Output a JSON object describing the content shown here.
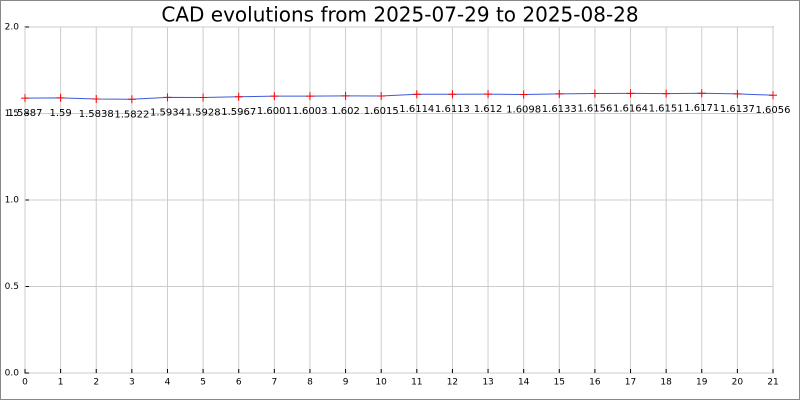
{
  "chart_data": {
    "type": "line",
    "title": "CAD evolutions from 2025-07-29 to 2025-08-28",
    "x": [
      0,
      1,
      2,
      3,
      4,
      5,
      6,
      7,
      8,
      9,
      10,
      11,
      12,
      13,
      14,
      15,
      16,
      17,
      18,
      19,
      20,
      21
    ],
    "series": [
      {
        "color": "#3b5bdb",
        "marker_color": "#ff0000",
        "values": [
          1.5887,
          1.59,
          1.5838,
          1.5822,
          1.5934,
          1.5928,
          1.5967,
          1.6001,
          1.6003,
          1.602,
          1.6015,
          1.6114,
          1.6113,
          1.612,
          1.6098,
          1.6133,
          1.6156,
          1.6164,
          1.6151,
          1.6171,
          1.6137,
          1.6056
        ]
      }
    ],
    "xlim": [
      0,
      21
    ],
    "xticks": [
      0,
      1,
      2,
      3,
      4,
      5,
      6,
      7,
      8,
      9,
      10,
      11,
      12,
      13,
      14,
      15,
      16,
      17,
      18,
      19,
      20,
      21
    ],
    "ylim": [
      0,
      2
    ],
    "yticks": [
      {
        "value": 0,
        "label": "0.0"
      },
      0.5,
      {
        "value": 1,
        "label": "1.0"
      },
      1.5,
      {
        "value": 2,
        "label": "2.0"
      }
    ],
    "grid": true
  }
}
